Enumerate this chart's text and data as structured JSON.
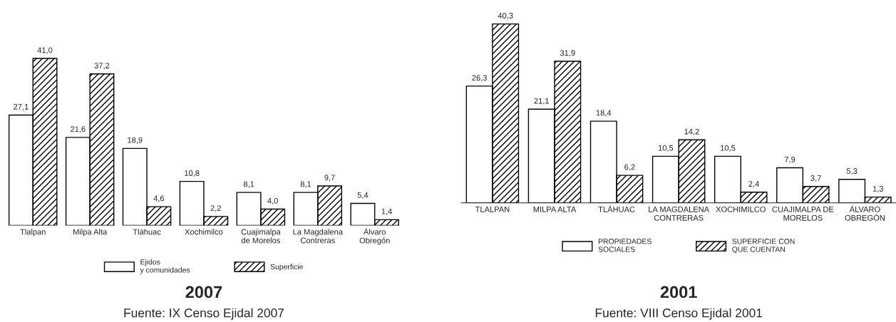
{
  "chart_data": [
    {
      "type": "bar",
      "title": "2007",
      "annotations": [
        "Fuente: IX Censo Ejidal 2007"
      ],
      "legend": "bottom",
      "categories": [
        "Tlalpan",
        "Milpa Alta",
        "Tláhuac",
        "Xochimilco",
        "Cuajimalpa\nde Morelos",
        "La Magdalena\nContreras",
        "Álvaro\nObregón"
      ],
      "series": [
        {
          "name": "Ejidos\ny comunidades",
          "color": "#ffffff",
          "values": [
            27.1,
            21.6,
            18.9,
            10.8,
            8.1,
            8.1,
            5.4
          ],
          "value_labels": [
            "27,1",
            "21,6",
            "18,9",
            "10,8",
            "8,1",
            "8,1",
            "5,4"
          ]
        },
        {
          "name": "Superficie",
          "color": "#000000",
          "values": [
            41.0,
            37.2,
            4.6,
            2.2,
            4.0,
            9.7,
            1.4
          ],
          "value_labels": [
            "41,0",
            "37,2",
            "4,6",
            "2,2",
            "4,0",
            "9,7",
            "1,4"
          ]
        }
      ]
    },
    {
      "type": "bar",
      "title": "2001",
      "annotations": [
        "Fuente: VIII Censo Ejidal 2001"
      ],
      "legend": "bottom",
      "categories": [
        "TLALPAN",
        "MILPA ALTA",
        "TLÁHUAC",
        "LA MAGDALENA\nCONTRERAS",
        "XOCHIMILCO",
        "CUAJIMALPA DE\nMORELOS",
        "ÁLVARO\nOBREGÓN"
      ],
      "series": [
        {
          "name": "PROPIEDADES\nSOCIALES",
          "color": "#ffffff",
          "values": [
            26.3,
            21.1,
            18.4,
            10.5,
            10.5,
            7.9,
            5.3
          ],
          "value_labels": [
            "26,3",
            "21,1",
            "18,4",
            "10,5",
            "10,5",
            "7,9",
            "5,3"
          ]
        },
        {
          "name": "SUPERFICIE CON\nQUE CUENTAN",
          "color": "#000000",
          "values": [
            40.3,
            31.9,
            6.2,
            14.2,
            2.4,
            3.7,
            1.3
          ],
          "value_labels": [
            "40,3",
            "31,9",
            "6,2",
            "14,2",
            "2,4",
            "3,7",
            "1,3"
          ]
        }
      ]
    }
  ]
}
